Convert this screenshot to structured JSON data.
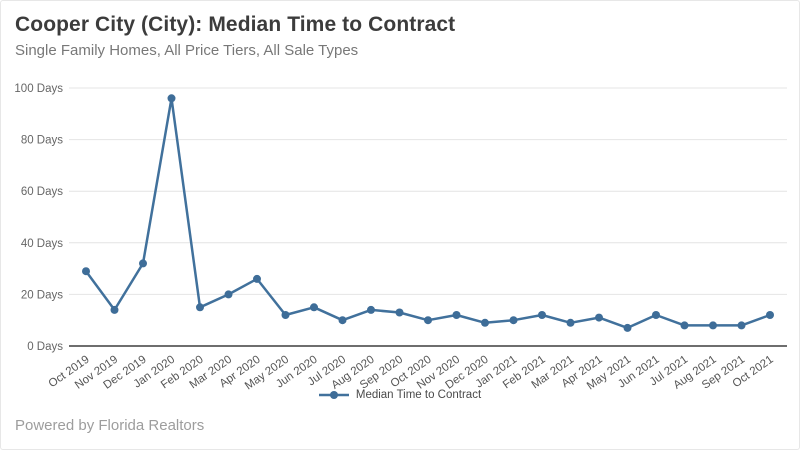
{
  "header": {
    "title": "Cooper City (City): Median Time to Contract",
    "subtitle": "Single Family Homes, All Price Tiers, All Sale Types"
  },
  "legend": {
    "label": "Median Time to Contract"
  },
  "footer": {
    "powered_by": "Powered by Florida Realtors"
  },
  "colors": {
    "line": "#41719c",
    "marker": "#3e6d98",
    "grid": "#e4e4e4",
    "axis_line": "#3f3f3f",
    "tick_label": "#666666",
    "title": "#3c3c3c",
    "subtitle": "#787878",
    "footer": "#9d9d9d"
  },
  "chart_data": {
    "type": "line",
    "title": "Cooper City (City): Median Time to Contract",
    "subtitle": "Single Family Homes, All Price Tiers, All Sale Types",
    "categories": [
      "Oct 2019",
      "Nov 2019",
      "Dec 2019",
      "Jan 2020",
      "Feb 2020",
      "Mar 2020",
      "Apr 2020",
      "May 2020",
      "Jun 2020",
      "Jul 2020",
      "Aug 2020",
      "Sep 2020",
      "Oct 2020",
      "Nov 2020",
      "Dec 2020",
      "Jan 2021",
      "Feb 2021",
      "Mar 2021",
      "Apr 2021",
      "May 2021",
      "Jun 2021",
      "Jul 2021",
      "Aug 2021",
      "Sep 2021",
      "Oct 2021"
    ],
    "series": [
      {
        "name": "Median Time to Contract",
        "values": [
          29,
          14,
          32,
          96,
          15,
          20,
          26,
          12,
          15,
          10,
          14,
          13,
          10,
          12,
          9,
          10,
          12,
          9,
          11,
          7,
          12,
          8,
          8,
          8,
          12
        ]
      }
    ],
    "ylim": [
      0,
      100
    ],
    "ytick_interval": 20,
    "ytick_suffix": " Days",
    "grid": true,
    "legend_position": "bottom",
    "marker": "circle"
  }
}
